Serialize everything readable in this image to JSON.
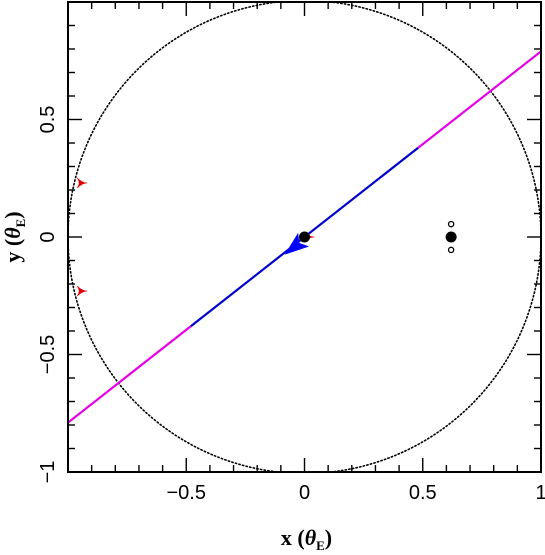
{
  "chart_data": {
    "type": "scatter",
    "xlabel": {
      "prefix": "x (",
      "symbol": "θ",
      "sub": "E",
      "suffix": ")"
    },
    "ylabel": {
      "prefix": "y (",
      "symbol": "θ",
      "sub": "E",
      "suffix": ")"
    },
    "xlim": [
      -1.0,
      1.0
    ],
    "ylim": [
      -1.0,
      1.0
    ],
    "x_major_ticks": [
      -0.5,
      0,
      0.5,
      1
    ],
    "x_tick_labels": [
      "−0.5",
      "0",
      "0.5",
      "1"
    ],
    "y_major_ticks": [
      -1,
      -0.5,
      0,
      0.5
    ],
    "y_tick_labels": [
      "−1",
      "−0.5",
      "0",
      "0.5"
    ],
    "minor_step": 0.1,
    "grid": false,
    "einstein_ring": {
      "cx": 0,
      "cy": 0,
      "r": 1.0,
      "style": "dotted",
      "color": "#000000"
    },
    "source_trajectory": {
      "slope": 0.79,
      "outer_color": "#e600e6",
      "inner_color": "#0000cc",
      "inner_x_range": [
        -0.48,
        0.48
      ],
      "direction_arrow": {
        "x": -0.04,
        "y": -0.04
      },
      "arrow_color": "#0000ff"
    },
    "lens": {
      "primary": {
        "x": 0.0,
        "y": 0.0
      },
      "companion": {
        "x": 0.62,
        "y": 0.0
      },
      "companion_small_points": [
        {
          "x": 0.62,
          "y": 0.055
        },
        {
          "x": 0.62,
          "y": -0.055
        }
      ]
    },
    "caustics": [
      {
        "x": -0.94,
        "y": 0.23,
        "color": "#e00000"
      },
      {
        "x": -0.94,
        "y": -0.23,
        "color": "#e00000"
      },
      {
        "x": 0.02,
        "y": 0.0,
        "color": "#e00000"
      }
    ]
  }
}
